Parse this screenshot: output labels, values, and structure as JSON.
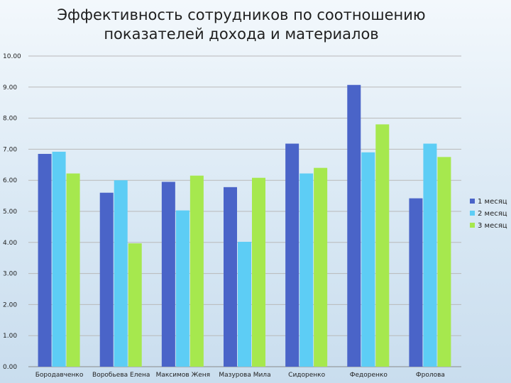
{
  "chart_data": {
    "type": "bar",
    "title": "Эффективность сотрудников по соотношению показателей дохода и материалов",
    "categories": [
      "Бородавченко",
      "Воробьева Елена",
      "Максимов Женя",
      "Мазурова Мила",
      "Сидоренко",
      "Федоренко",
      "Фролова"
    ],
    "series": [
      {
        "name": "1 месяц",
        "color": "#4a64c8",
        "values": [
          6.85,
          5.6,
          5.95,
          5.78,
          7.18,
          9.07,
          5.42
        ]
      },
      {
        "name": "2 месяц",
        "color": "#5dcdf5",
        "values": [
          6.92,
          6.0,
          5.03,
          4.02,
          6.22,
          6.9,
          7.18
        ]
      },
      {
        "name": "3 месяц",
        "color": "#a6e84e",
        "values": [
          6.22,
          3.97,
          6.15,
          6.08,
          6.4,
          7.8,
          6.75
        ]
      }
    ],
    "yticks": [
      "0.00",
      "1.00",
      "2.00",
      "3.00",
      "4.00",
      "5.00",
      "6.00",
      "7.00",
      "8.00",
      "9.00",
      "10.00"
    ],
    "ylim": [
      0,
      10
    ],
    "grid": true,
    "legend": "right"
  }
}
